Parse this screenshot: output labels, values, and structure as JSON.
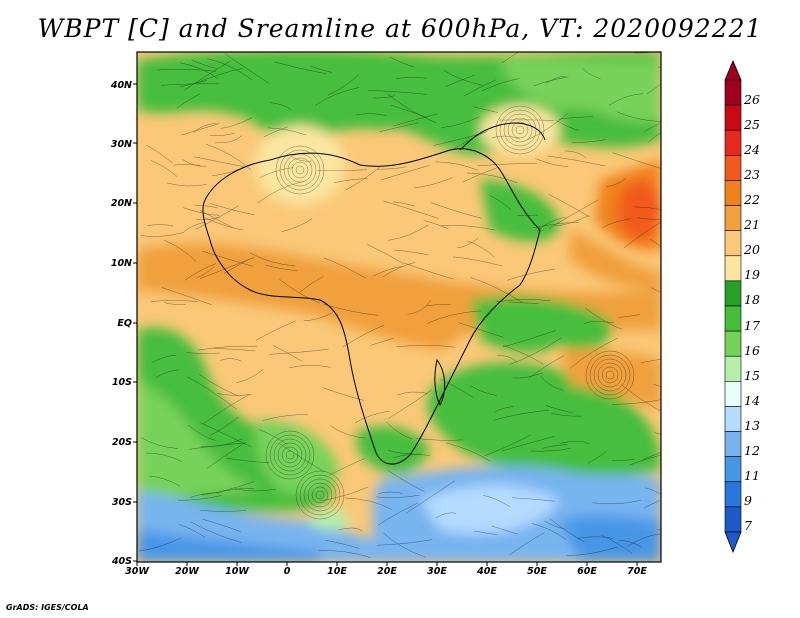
{
  "title": "WBPT [C] and Sreamline at 600hPa, VT: 2020092221",
  "credit": "GrADS: IGES/COLA",
  "axes": {
    "lat_labels": [
      "40N",
      "30N",
      "20N",
      "10N",
      "EQ",
      "10S",
      "20S",
      "30S",
      "40S"
    ],
    "lon_labels": [
      "30W",
      "20W",
      "10W",
      "0",
      "10E",
      "20E",
      "30E",
      "40E",
      "50E",
      "60E",
      "70E"
    ],
    "lat_range": [
      -40,
      44
    ],
    "lon_range": [
      -30,
      75
    ]
  },
  "colorbar": {
    "labels": [
      "26",
      "25",
      "24",
      "23",
      "22",
      "21",
      "20",
      "19",
      "18",
      "17",
      "16",
      "15",
      "14",
      "13",
      "12",
      "11",
      "9",
      "7"
    ],
    "colors": [
      "#a0001e",
      "#c80a14",
      "#e6281e",
      "#f05a1e",
      "#f0821e",
      "#f0a03c",
      "#fac878",
      "#fae6a0",
      "#28a028",
      "#46be3c",
      "#78d25a",
      "#b4f0aa",
      "#e6fffa",
      "#b4dcff",
      "#78b4f0",
      "#4696e6",
      "#2878dc",
      "#1e5ac8"
    ]
  },
  "map": {
    "description_colors": {
      "warm": "#f0a03c",
      "tan": "#fac878",
      "green": "#46be3c",
      "lightgreen": "#78d25a",
      "blue": "#78b4f0"
    }
  }
}
